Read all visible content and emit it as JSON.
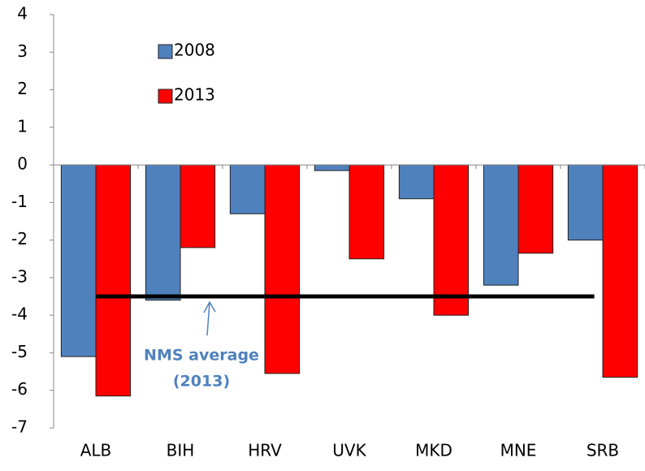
{
  "chart_data": {
    "type": "bar",
    "categories": [
      "ALB",
      "BIH",
      "HRV",
      "UVK",
      "MKD",
      "MNE",
      "SRB"
    ],
    "series": [
      {
        "name": "2008",
        "color": "#4f81bd",
        "values": [
          -5.1,
          -3.6,
          -1.3,
          -0.15,
          -0.9,
          -3.2,
          -2.0
        ]
      },
      {
        "name": "2013",
        "color": "#ff0000",
        "values": [
          -6.15,
          -2.2,
          -5.55,
          -2.5,
          -4.0,
          -2.35,
          -5.65
        ]
      }
    ],
    "ylim": [
      -7,
      4
    ],
    "yticks": [
      -7,
      -6,
      -5,
      -4,
      -3,
      -2,
      -1,
      0,
      1,
      2,
      3,
      4
    ],
    "reference_line": {
      "value": -3.5,
      "label": [
        "NMS average",
        "(2013)"
      ]
    },
    "grid": false,
    "legend": "upper left"
  }
}
